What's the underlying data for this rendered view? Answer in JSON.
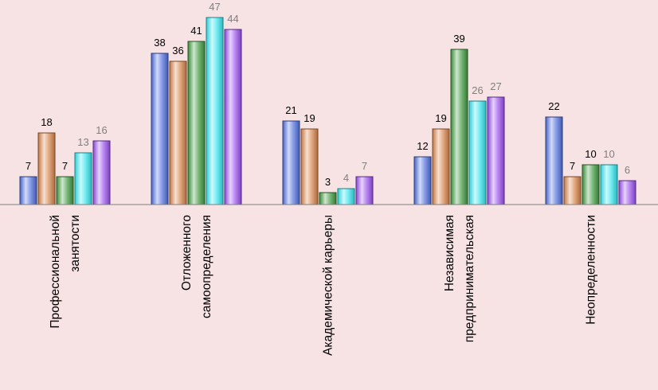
{
  "chart_data": {
    "type": "bar",
    "title": "",
    "xlabel": "",
    "ylabel": "",
    "ylim": [
      0,
      47
    ],
    "grid": false,
    "legend": "none",
    "categories": [
      [
        "Профессиональной",
        "занятости"
      ],
      [
        "Отложенного",
        "самоопределения"
      ],
      [
        "Академической карьеры"
      ],
      [
        "Независимая",
        "предпринимательская"
      ],
      [
        "Неопределенности"
      ]
    ],
    "series": [
      {
        "values": [
          7,
          38,
          21,
          12,
          22
        ],
        "color": "#4f6fe0",
        "label_color": "#000000"
      },
      {
        "values": [
          18,
          36,
          19,
          19,
          7
        ],
        "color": "#d9844a",
        "label_color": "#000000"
      },
      {
        "values": [
          7,
          41,
          3,
          39,
          10
        ],
        "color": "#3f9a3f",
        "label_color": "#000000"
      },
      {
        "values": [
          13,
          47,
          4,
          26,
          10
        ],
        "color": "#33e6f0",
        "label_color": "#7f7f7f"
      },
      {
        "values": [
          16,
          44,
          7,
          27,
          6
        ],
        "color": "#9b4ff0",
        "label_color": "#7f7f7f"
      }
    ]
  }
}
